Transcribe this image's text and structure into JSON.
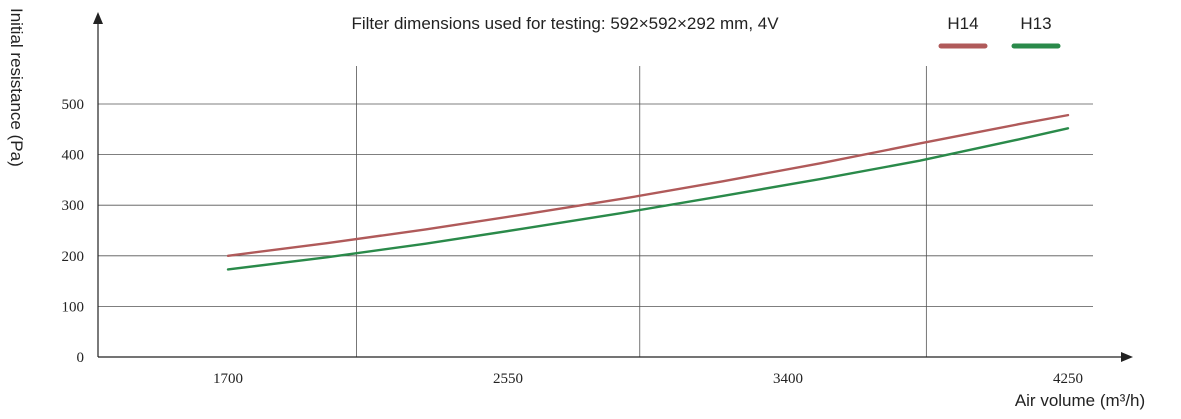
{
  "chart_data": {
    "type": "line",
    "title": "Filter dimensions used for testing: 592×592×292 mm, 4V",
    "xlabel": "Air volume (m³/h)",
    "ylabel": "Initial resistance (Pa)",
    "x_ticks": [
      "1700",
      "2550",
      "3400",
      "4250"
    ],
    "y_ticks": [
      "0",
      "100",
      "200",
      "300",
      "400",
      "500"
    ],
    "xlim": [
      1700,
      4250
    ],
    "ylim": [
      0,
      500
    ],
    "vertical_grid_x": [
      2090,
      2950,
      3820
    ],
    "grid": true,
    "legend_position": "top-right",
    "series": [
      {
        "name": "H14",
        "color": "#b05a5a",
        "x": [
          1700,
          2000,
          2300,
          2600,
          2900,
          3200,
          3500,
          3800,
          4100,
          4250
        ],
        "y": [
          200,
          225,
          252,
          282,
          313,
          347,
          383,
          422,
          460,
          478
        ]
      },
      {
        "name": "H13",
        "color": "#2a8a4a",
        "x": [
          1700,
          2000,
          2300,
          2600,
          2900,
          3200,
          3500,
          3800,
          4100,
          4250
        ],
        "y": [
          173,
          197,
          224,
          254,
          285,
          318,
          352,
          388,
          430,
          452
        ]
      }
    ]
  }
}
